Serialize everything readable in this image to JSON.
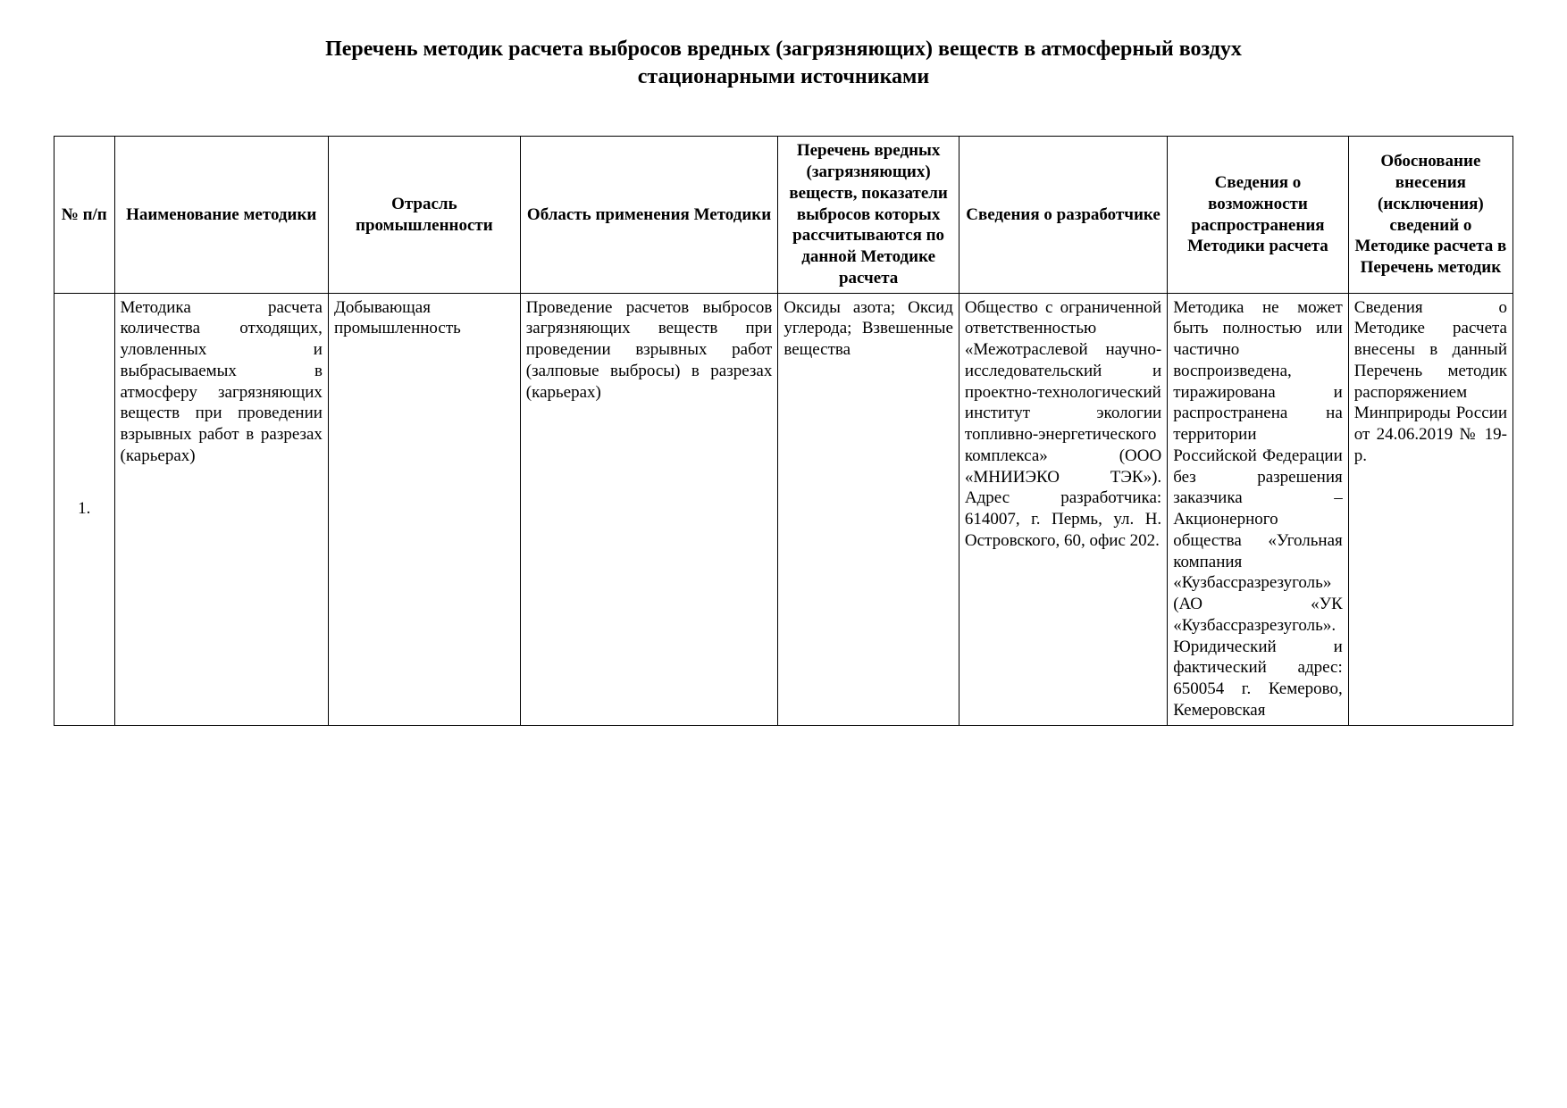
{
  "title_line1": "Перечень методик расчета выбросов вредных (загрязняющих) веществ в атмосферный воздух",
  "title_line2": "стационарными источниками",
  "table": {
    "headers": {
      "num": "№ п/п",
      "name": "Наименование методики",
      "industry": "Отрасль промышленности",
      "scope": "Область применения Методики",
      "substances": "Перечень вредных (загрязняющих) веществ, показатели выбросов которых рассчитываются по данной Методике расчета",
      "developer": "Сведения о разработчике",
      "distribution": "Сведения о возможности распространения Методики расчета",
      "justification": "Обоснование внесения (исключения) сведений о Методике расчета в Перечень методик"
    },
    "rows": [
      {
        "num": "1.",
        "name": "Методика расчета количества отходящих, уловленных и выбрасываемых в атмосферу загрязняющих веществ при проведении взрывных работ в разрезах (карьерах)",
        "industry": "Добывающая промышленность",
        "scope": "Проведение расчетов выбросов загрязняющих веществ при проведении взрывных работ (залповые выбросы) в разрезах (карьерах)",
        "substances": "Оксиды азота; Оксид углерода; Взвешенные вещества",
        "developer": "Общество с ограниченной ответственностью «Межотраслевой научно-исследовательский и проектно-технологический институт экологии топливно-энергетического комплекса» (ООО «МНИИЭКО ТЭК»). Адрес разработчика: 614007, г. Пермь, ул. Н. Островского, 60, офис 202.",
        "distribution": "Методика не может быть полностью или частично воспроизведена, тиражирована и распространена на территории Российской Федерации без разрешения заказчика – Акционерного общества «Угольная компания «Кузбассразрезуголь» (АО «УК «Кузбассразрезуголь». Юридический и фактический адрес: 650054 г. Кемерово, Кемеровская",
        "justification": "Сведения о Методике расчета внесены в данный Перечень методик распоряжением Минприроды России от 24.06.2019 № 19-р."
      }
    ]
  },
  "styling": {
    "background_color": "#ffffff",
    "border_color": "#000000",
    "font_family": "Times New Roman",
    "title_fontsize": 24,
    "cell_fontsize": 19,
    "title_weight": "bold",
    "header_weight": "bold"
  }
}
